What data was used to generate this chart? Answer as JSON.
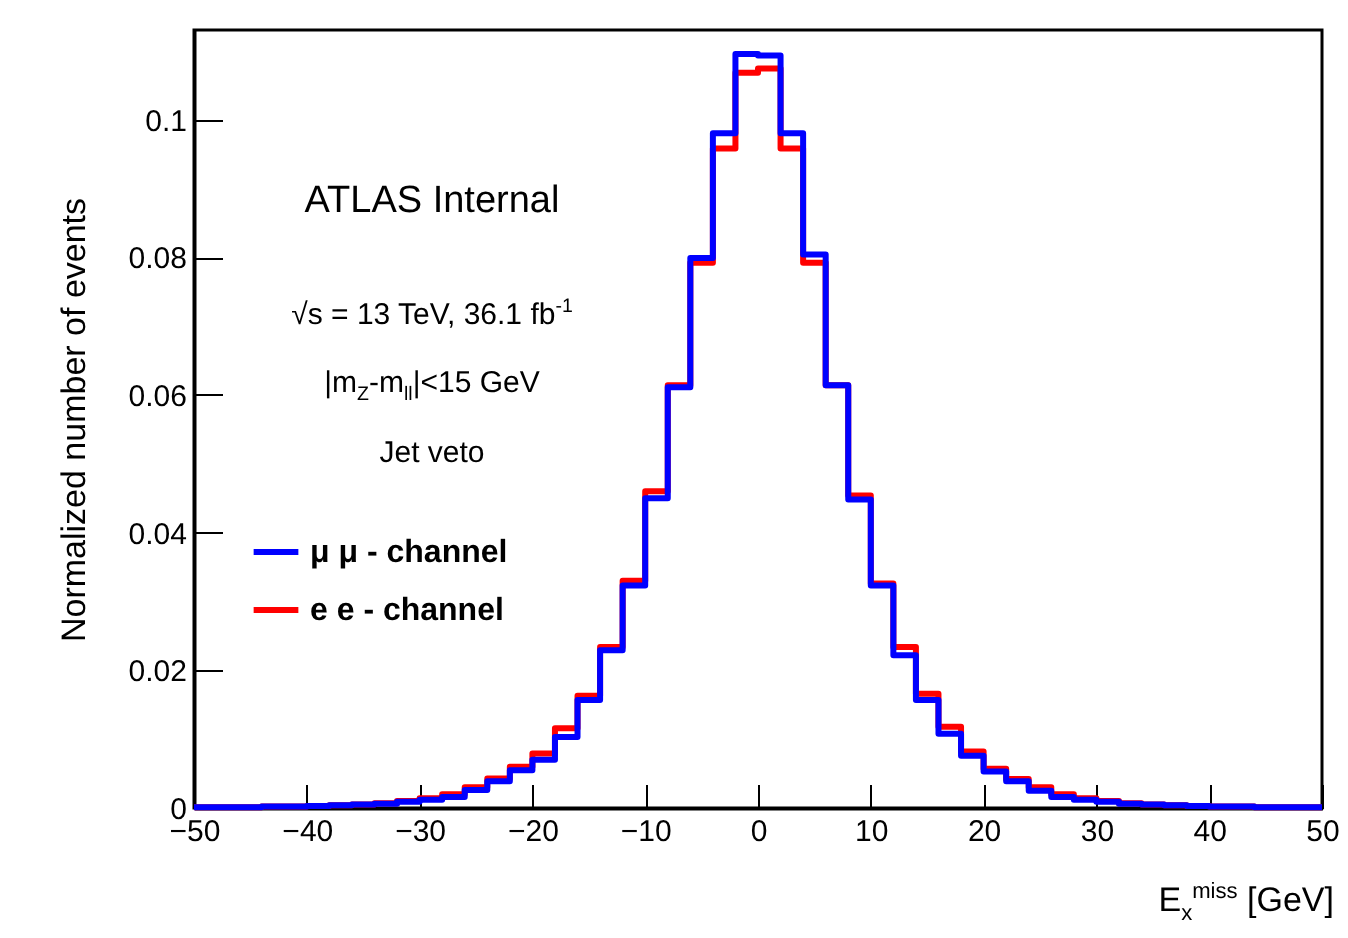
{
  "chart_data": {
    "type": "histogram",
    "xlabel": "E$_{x}$$^{miss}$ [GeV]",
    "ylabel": "Normalized number of events",
    "annotations": [
      "ATLAS Internal",
      "√s = 13 TeV, 36.1 fb$^{-1}$",
      "|m$_{Z}$-m$_{ll}$|<15 GeV",
      "Jet veto"
    ],
    "bins": [
      -50,
      -48,
      -46,
      -44,
      -42,
      -40,
      -38,
      -36,
      -34,
      -32,
      -30,
      -28,
      -26,
      -24,
      -22,
      -20,
      -18,
      -16,
      -14,
      -12,
      -10,
      -8,
      -6,
      -4,
      -2,
      0,
      2,
      4,
      6,
      8,
      10,
      12,
      14,
      16,
      18,
      20,
      22,
      24,
      26,
      28,
      30,
      32,
      34,
      36,
      38,
      40,
      42,
      44,
      46,
      48,
      50
    ],
    "series": [
      {
        "name": "μ μ - channel",
        "color": "#0000ff",
        "values": [
          0.0001,
          0.0001,
          0.0001,
          0.0002,
          0.0002,
          0.0003,
          0.0004,
          0.0005,
          0.0006,
          0.0009,
          0.0012,
          0.0016,
          0.0026,
          0.0039,
          0.0055,
          0.007,
          0.0103,
          0.0157,
          0.0229,
          0.0323,
          0.045,
          0.0611,
          0.0799,
          0.098,
          0.1095,
          0.1093,
          0.098,
          0.0804,
          0.0614,
          0.0448,
          0.0323,
          0.0222,
          0.0157,
          0.0108,
          0.0076,
          0.0053,
          0.0039,
          0.0025,
          0.0016,
          0.0012,
          0.0009,
          0.0006,
          0.0005,
          0.0004,
          0.0003,
          0.0002,
          0.0002,
          0.0001,
          0.0001,
          0.0001
        ]
      },
      {
        "name": "e e - channel",
        "color": "#ff0000",
        "values": [
          0.0001,
          0.0001,
          0.0001,
          0.0002,
          0.0002,
          0.0003,
          0.0004,
          0.0005,
          0.0007,
          0.001,
          0.0014,
          0.002,
          0.003,
          0.0043,
          0.006,
          0.0079,
          0.0116,
          0.0163,
          0.0234,
          0.033,
          0.046,
          0.0614,
          0.0792,
          0.0958,
          0.1068,
          0.1074,
          0.0958,
          0.0792,
          0.0614,
          0.0454,
          0.0326,
          0.0234,
          0.0166,
          0.0118,
          0.0082,
          0.0057,
          0.0042,
          0.003,
          0.002,
          0.0014,
          0.001,
          0.0007,
          0.0005,
          0.0004,
          0.0003,
          0.0002,
          0.0002,
          0.0001,
          0.0001,
          0.0001
        ]
      }
    ],
    "xlim": [
      -50,
      50
    ],
    "xticks": [
      -50,
      -40,
      -30,
      -20,
      -10,
      0,
      10,
      20,
      30,
      40,
      50
    ],
    "ylim": [
      0,
      0.113
    ],
    "yticks": [
      0,
      0.02,
      0.04,
      0.06,
      0.08,
      0.1
    ],
    "grid": false,
    "legend": "left",
    "line_style": "solid",
    "marker": "none"
  }
}
